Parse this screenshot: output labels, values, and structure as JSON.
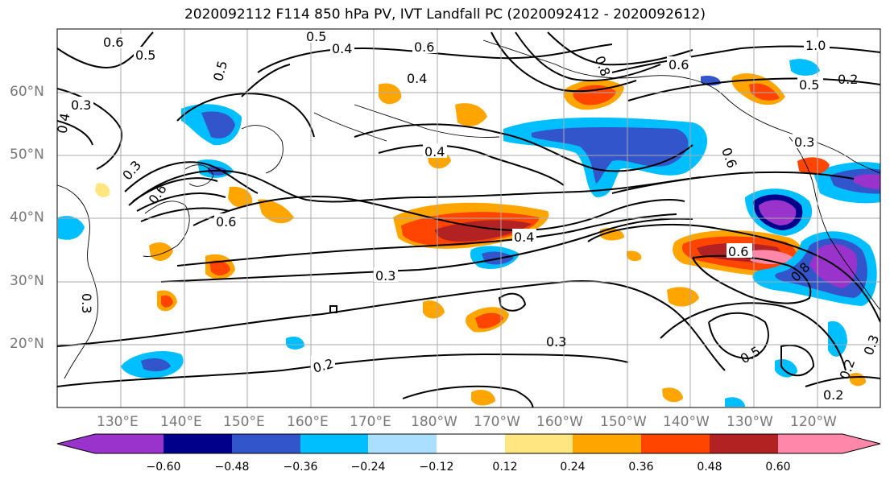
{
  "title": "2020092112 F114 850 hPa PV, IVT Landfall PC (2020092412 - 2020092612)",
  "lat_labels": [
    "60°N",
    "50°N",
    "40°N",
    "30°N",
    "20°N"
  ],
  "lon_labels": [
    "130°E",
    "140°E",
    "150°E",
    "160°E",
    "170°E",
    "180°W",
    "170°W",
    "160°W",
    "150°W",
    "140°W",
    "130°W",
    "120°W"
  ],
  "colorbar": {
    "ticks": [
      "−0.60",
      "−0.48",
      "−0.36",
      "−0.24",
      "−0.12",
      "0.12",
      "0.24",
      "0.36",
      "0.48",
      "0.60"
    ],
    "colors": [
      "#9933cc",
      "#00008b",
      "#3355cc",
      "#00bfff",
      "#aadfff",
      "#ffffff",
      "#ffe680",
      "#ffa500",
      "#ff4500",
      "#b22222",
      "#ff88aa"
    ]
  },
  "contour_labels": [
    "0.6",
    "0.5",
    "0.5",
    "0.4",
    "0.6",
    "0.4",
    "0.8",
    "0.6",
    "1.0",
    "0.5",
    "0.2",
    "0.5",
    "0.3",
    "0.4",
    "0.3",
    "0.4",
    "0.6",
    "0.6",
    "0.6",
    "0.4",
    "0.3",
    "0.3",
    "0.6",
    "0.8",
    "0.3",
    "0.2",
    "0.5",
    "0.3",
    "0.2",
    "0.2",
    "0.3"
  ]
}
